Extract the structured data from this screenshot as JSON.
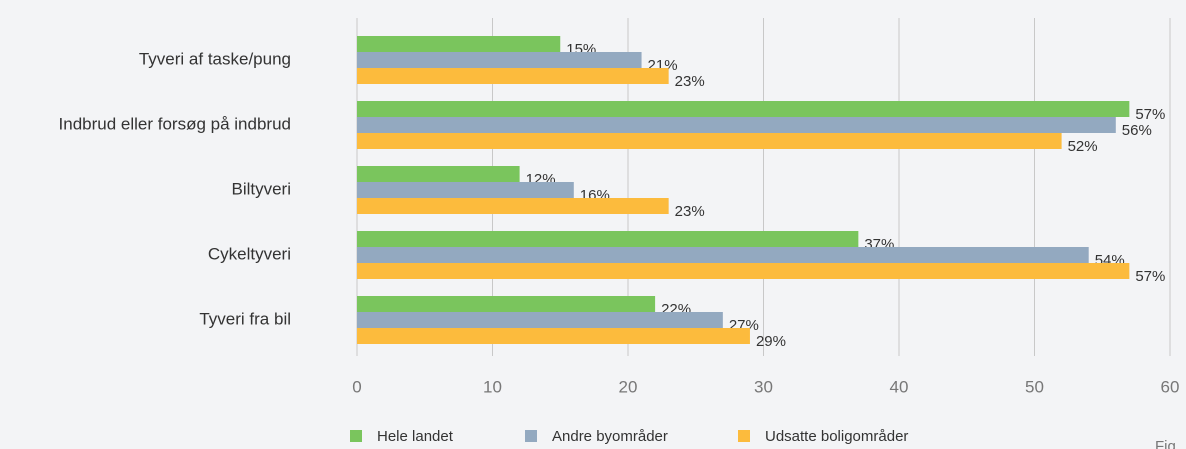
{
  "chart_data": {
    "type": "bar",
    "orientation": "horizontal",
    "categories": [
      "Tyveri af taske/pung",
      "Indbrud eller forsøg på indbrud",
      "Biltyveri",
      "Cykeltyveri",
      "Tyveri fra bil"
    ],
    "series": [
      {
        "name": "Hele landet",
        "color": "#7ac55d",
        "values": [
          15,
          57,
          12,
          37,
          22
        ],
        "value_labels": [
          "15%",
          "57%",
          "12%",
          "37%",
          "22%"
        ]
      },
      {
        "name": "Andre byområder",
        "color": "#93a9c0",
        "values": [
          21,
          56,
          16,
          54,
          27
        ],
        "value_labels": [
          "21%",
          "56%",
          "16%",
          "54%",
          "27%"
        ]
      },
      {
        "name": "Udsatte boligområder",
        "color": "#fcbb3d",
        "values": [
          23,
          52,
          23,
          57,
          29
        ],
        "value_labels": [
          "23%",
          "52%",
          "23%",
          "57%",
          "29%"
        ]
      }
    ],
    "xlim": [
      0,
      60
    ],
    "xticks": [
      0,
      10,
      20,
      30,
      40,
      50,
      60
    ],
    "grid": true,
    "note": "Fig"
  }
}
